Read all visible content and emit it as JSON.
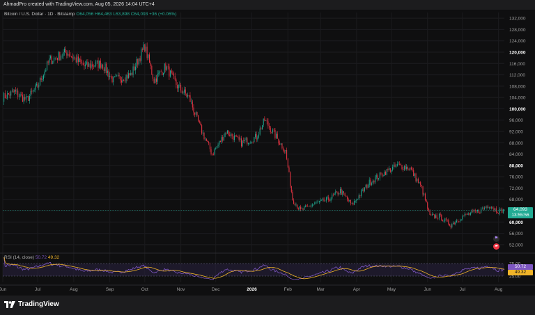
{
  "attribution": "AhmadPro created with TradingView.com, Aug 05, 2026 14:04 UTC+4",
  "header": {
    "symbol": "Bitcoin / U.S. Dollar · 1D · Bitstamp",
    "ohlc": "O64,056 H64,463 L63,898 C64,093 +36 (+0.06%)"
  },
  "current_price": {
    "price": "64,093",
    "countdown": "13:55:56"
  },
  "rsi": {
    "label": "RSI (14, close)",
    "rsi_value": "50.72",
    "ma_value": "49.32",
    "levels": [
      "75.00",
      "25.00"
    ],
    "upper": 75,
    "lower": 25
  },
  "brand": "TradingView",
  "colors": {
    "up": "#22ab94",
    "down": "#f23645",
    "rsi_line": "#7e57c2",
    "rsi_ma": "#f0b429",
    "band": "#2a2340",
    "tag_rsi": "#7e57c2",
    "tag_ma": "#f0b429"
  },
  "icons": [
    "tradingview-logo-icon",
    "alert-icon",
    "flag-icon"
  ],
  "chart_data": {
    "type": "candlestick",
    "price_axis": {
      "min": 50000,
      "max": 134000,
      "ticks": [
        52000,
        56000,
        60000,
        64000,
        68000,
        72000,
        76000,
        80000,
        84000,
        88000,
        92000,
        96000,
        100000,
        104000,
        108000,
        112000,
        116000,
        120000,
        124000,
        128000,
        132000
      ],
      "tick_labels": [
        "52,000",
        "56,000",
        "60,000",
        "64,000",
        "68,000",
        "72,000",
        "76,000",
        "80,000",
        "84,000",
        "88,000",
        "92,000",
        "96,000",
        "100,000",
        "104,000",
        "108,000",
        "112,000",
        "116,000",
        "120,000",
        "124,000",
        "128,000",
        "132,000"
      ],
      "bold_ticks": [
        60000,
        80000,
        100000,
        120000
      ]
    },
    "time_axis": {
      "labels": [
        "Jun",
        "Jul",
        "Aug",
        "Sep",
        "Oct",
        "Nov",
        "Dec",
        "2026",
        "Feb",
        "Mar",
        "Apr",
        "May",
        "Jun",
        "Jul",
        "Aug"
      ],
      "label_day_index": [
        0,
        30,
        61,
        92,
        122,
        153,
        183,
        214,
        245,
        273,
        304,
        334,
        365,
        395,
        426
      ],
      "bold_labels": [
        "2026"
      ]
    },
    "total_days": 431,
    "price_path_anchors": [
      [
        0,
        104000
      ],
      [
        10,
        106000
      ],
      [
        20,
        103000
      ],
      [
        30,
        108000
      ],
      [
        40,
        117000
      ],
      [
        55,
        120000
      ],
      [
        70,
        115000
      ],
      [
        85,
        116000
      ],
      [
        95,
        110000
      ],
      [
        110,
        112000
      ],
      [
        122,
        122000
      ],
      [
        130,
        110000
      ],
      [
        140,
        115000
      ],
      [
        150,
        108000
      ],
      [
        160,
        104000
      ],
      [
        170,
        93000
      ],
      [
        180,
        84000
      ],
      [
        192,
        92000
      ],
      [
        205,
        88000
      ],
      [
        218,
        90000
      ],
      [
        225,
        96000
      ],
      [
        235,
        90000
      ],
      [
        243,
        85000
      ],
      [
        249,
        68000
      ],
      [
        256,
        64000
      ],
      [
        265,
        66000
      ],
      [
        280,
        68000
      ],
      [
        290,
        71000
      ],
      [
        300,
        66000
      ],
      [
        315,
        74000
      ],
      [
        330,
        78000
      ],
      [
        340,
        80000
      ],
      [
        350,
        79000
      ],
      [
        360,
        72000
      ],
      [
        367,
        62000
      ],
      [
        375,
        62000
      ],
      [
        385,
        59000
      ],
      [
        395,
        62000
      ],
      [
        410,
        64000
      ],
      [
        418,
        66000
      ],
      [
        425,
        64000
      ],
      [
        431,
        64093
      ]
    ],
    "last": {
      "open": 64056,
      "high": 64463,
      "low": 63898,
      "close": 64093
    }
  }
}
